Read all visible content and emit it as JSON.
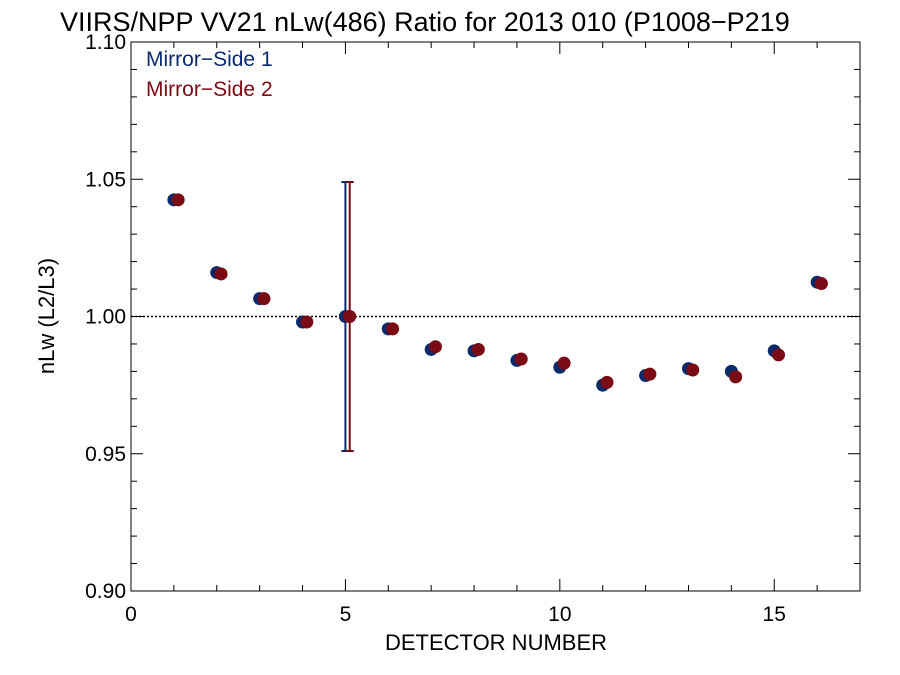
{
  "chart_data": {
    "type": "scatter",
    "title": "VIIRS/NPP VV21 nLw(486) Ratio for 2013 010 (P1008−P219",
    "xlabel": "DETECTOR NUMBER",
    "ylabel": "nLw (L2/L3)",
    "xlim": [
      0,
      17
    ],
    "ylim": [
      0.9,
      1.1
    ],
    "xticks": [
      0,
      5,
      10,
      15
    ],
    "yticks": [
      0.9,
      0.95,
      1.0,
      1.05,
      1.1
    ],
    "xtick_labels": [
      "0",
      "5",
      "10",
      "15"
    ],
    "ytick_labels": [
      "0.90",
      "0.95",
      "1.00",
      "1.05",
      "1.10"
    ],
    "reference_line": 1.0,
    "legend_position": "top-left",
    "series": [
      {
        "name": "Mirror−Side 1",
        "color": "#0a2a6b",
        "x": [
          1,
          2,
          3,
          4,
          5,
          6,
          7,
          8,
          9,
          10,
          11,
          12,
          13,
          14,
          15,
          16
        ],
        "y": [
          1.0425,
          1.016,
          1.0065,
          0.998,
          1.0,
          0.9955,
          0.988,
          0.9875,
          0.984,
          0.9815,
          0.975,
          0.9785,
          0.981,
          0.98,
          0.9875,
          1.0125
        ],
        "error_bar": {
          "x": 5,
          "low": 0.951,
          "high": 1.049
        }
      },
      {
        "name": "Mirror−Side 2",
        "color": "#7a0a14",
        "x": [
          1.1,
          2.1,
          3.1,
          4.1,
          5.1,
          6.1,
          7.1,
          8.1,
          9.1,
          10.1,
          11.1,
          12.1,
          13.1,
          14.1,
          15.1,
          16.1
        ],
        "y": [
          1.0425,
          1.0155,
          1.0065,
          0.998,
          1.0,
          0.9955,
          0.989,
          0.988,
          0.9845,
          0.983,
          0.976,
          0.979,
          0.9805,
          0.978,
          0.986,
          1.012
        ],
        "error_bar": {
          "x": 5.1,
          "low": 0.951,
          "high": 1.049
        }
      }
    ]
  }
}
